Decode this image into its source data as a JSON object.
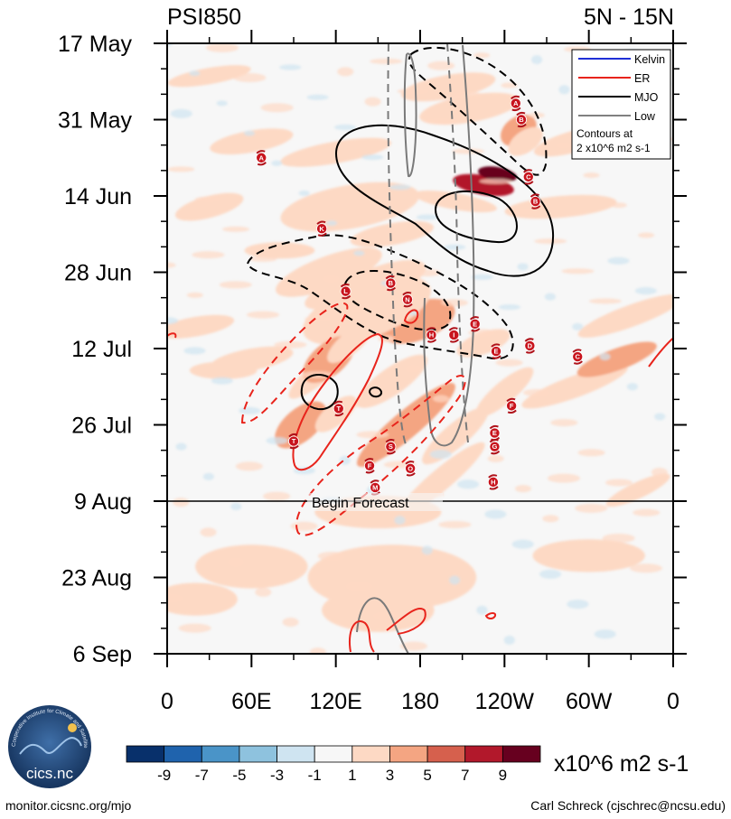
{
  "chart_data": {
    "type": "heatmap",
    "title_left": "PSI850",
    "title_right": "5N - 15N",
    "x_ticks": [
      "0",
      "60E",
      "120E",
      "180",
      "120W",
      "60W",
      "0"
    ],
    "x_range": [
      0,
      360
    ],
    "y_ticks": [
      "17 May",
      "31 May",
      "14 Jun",
      "28 Jun",
      "12 Jul",
      "26 Jul",
      "9 Aug",
      "23 Aug",
      "6 Sep"
    ],
    "y_range_days": [
      0,
      112
    ],
    "forecast_line_day": 84,
    "forecast_label": "Begin Forecast",
    "legend": {
      "items": [
        {
          "label": "Kelvin",
          "color": "#1f2fd6"
        },
        {
          "label": "ER",
          "color": "#e8241c"
        },
        {
          "label": "MJO",
          "color": "#000000"
        },
        {
          "label": "Low",
          "color": "#808080"
        }
      ],
      "note_line1": "Contours at",
      "note_line2": "2 x10^6 m2 s-1"
    },
    "colorbar": {
      "labels": [
        "-9",
        "-7",
        "-5",
        "-3",
        "-1",
        "1",
        "3",
        "5",
        "7",
        "9"
      ],
      "colors": [
        "#08306b",
        "#1f63ad",
        "#4a94c8",
        "#8ec2de",
        "#cfe4f1",
        "#f7f7f7",
        "#fdd9c4",
        "#f4a582",
        "#d6604d",
        "#b2182b",
        "#67001f"
      ],
      "units": "x10^6 m2 s-1"
    },
    "storms": [
      {
        "lon": 67,
        "day": 21,
        "code": "A"
      },
      {
        "lon": 110,
        "day": 34,
        "code": "K"
      },
      {
        "lon": 127,
        "day": 45.5,
        "code": "L"
      },
      {
        "lon": 159,
        "day": 44,
        "code": "B"
      },
      {
        "lon": 171,
        "day": 47,
        "code": "N"
      },
      {
        "lon": 188,
        "day": 53.5,
        "code": "H"
      },
      {
        "lon": 204,
        "day": 53.5,
        "code": "I"
      },
      {
        "lon": 219,
        "day": 51.5,
        "code": "E"
      },
      {
        "lon": 234,
        "day": 56.5,
        "code": "E"
      },
      {
        "lon": 248,
        "day": 11,
        "code": "A"
      },
      {
        "lon": 252,
        "day": 14,
        "code": "B"
      },
      {
        "lon": 257,
        "day": 24.5,
        "code": "C"
      },
      {
        "lon": 262,
        "day": 29,
        "code": "B"
      },
      {
        "lon": 258,
        "day": 55.5,
        "code": "D"
      },
      {
        "lon": 292,
        "day": 57.5,
        "code": "C"
      },
      {
        "lon": 245,
        "day": 66.5,
        "code": "F"
      },
      {
        "lon": 233,
        "day": 71.5,
        "code": "E"
      },
      {
        "lon": 233,
        "day": 74,
        "code": "G"
      },
      {
        "lon": 159,
        "day": 74,
        "code": "S"
      },
      {
        "lon": 144,
        "day": 77.5,
        "code": "F"
      },
      {
        "lon": 173,
        "day": 78,
        "code": "O"
      },
      {
        "lon": 232,
        "day": 80.5,
        "code": "H"
      },
      {
        "lon": 148,
        "day": 81.5,
        "code": "M"
      },
      {
        "lon": 90,
        "day": 73,
        "code": "T"
      },
      {
        "lon": 122,
        "day": 67,
        "code": "T"
      }
    ]
  },
  "footer": {
    "left": "monitor.cicsnc.org/mjo",
    "right": "Carl Schreck (cjschrec@ncsu.edu)",
    "logo_text": "cics.nc",
    "logo_ring_text": "Cooperative Institute for Climate and Satellites"
  }
}
